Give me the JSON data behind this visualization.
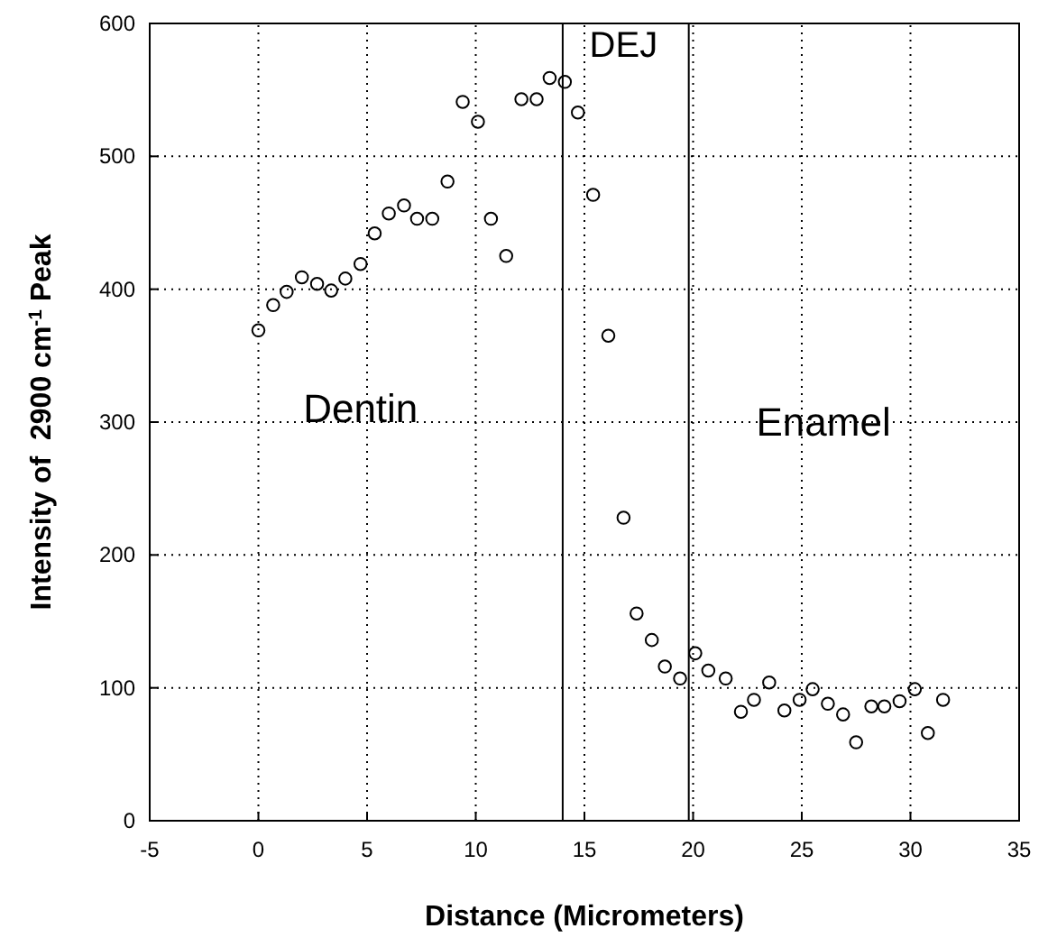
{
  "chart_data": {
    "type": "scatter",
    "xlabel": "Distance (Micrometers)",
    "ylabel": "Intensity of  2900 cm$^{-1}$ Peak",
    "xlim": [
      -5,
      35
    ],
    "xticks": [
      -5,
      0,
      5,
      10,
      15,
      20,
      25,
      30,
      35
    ],
    "ylim": [
      0,
      600
    ],
    "yticks": [
      0,
      100,
      200,
      300,
      400,
      500,
      600
    ],
    "grid": true,
    "marker": "circle",
    "x": [
      0,
      0.68,
      1.3,
      2.0,
      2.7,
      3.35,
      4.0,
      4.7,
      5.35,
      6.0,
      6.7,
      7.3,
      8.0,
      8.7,
      9.4,
      10.1,
      10.7,
      11.4,
      12.1,
      12.8,
      13.4,
      14.1,
      14.7,
      15.4,
      16.1,
      16.8,
      17.4,
      18.1,
      18.7,
      19.4,
      20.1,
      20.7,
      21.5,
      22.2,
      22.8,
      23.5,
      24.2,
      24.9,
      25.5,
      26.2,
      26.9,
      27.5,
      28.2,
      28.8,
      29.5,
      30.2,
      30.8,
      31.5
    ],
    "series": [
      {
        "color": "#000000",
        "values": [
          369,
          388,
          398,
          409,
          404,
          399,
          408,
          419,
          442,
          457,
          463,
          453,
          453,
          481,
          541,
          526,
          453,
          425,
          543,
          543,
          559,
          556,
          533,
          471,
          365,
          228,
          156,
          136,
          116,
          107,
          126,
          113,
          107,
          82,
          91,
          104,
          83,
          91,
          99,
          88,
          80,
          59,
          86,
          86,
          90,
          99,
          66,
          91
        ]
      }
    ],
    "ref_lines": [
      {
        "axis": "x",
        "value": 14,
        "color": "#000000",
        "line_style": "solid"
      },
      {
        "axis": "x",
        "value": 19.8,
        "color": "#000000",
        "line_style": "solid"
      }
    ],
    "annotations": [
      "DEJ",
      "Dentin",
      "Enamel"
    ]
  }
}
